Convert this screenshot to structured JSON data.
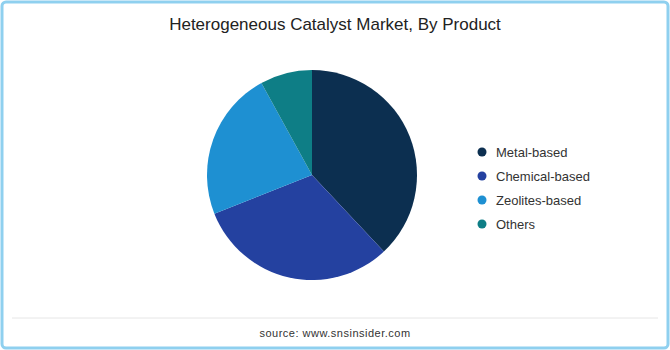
{
  "chart_data": {
    "type": "pie",
    "title": "Heterogeneous Catalyst Market, By Product",
    "categories": [
      "Metal-based",
      "Chemical-based",
      "Zeolites-based",
      "Others"
    ],
    "values": [
      38,
      31,
      23,
      8
    ],
    "colors": [
      "#0c2f50",
      "#2441a0",
      "#1e90d2",
      "#0e7e86"
    ],
    "legend": "right",
    "source": "source: www.snsinsider.com"
  }
}
